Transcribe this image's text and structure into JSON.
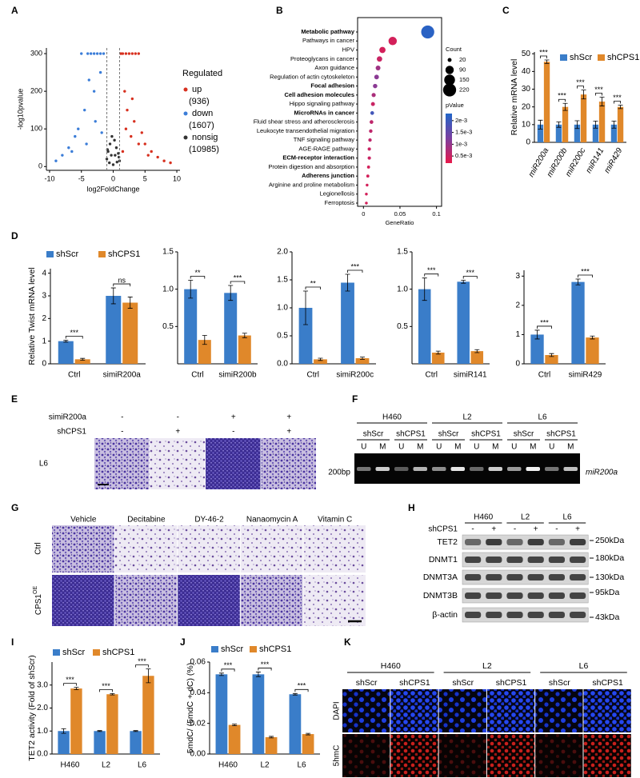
{
  "chart_data": [
    {
      "panel": "A",
      "type": "scatter",
      "ylabel": "-log10pvalue",
      "xlabel": "log2FoldChange",
      "xlim": [
        -10.5,
        10.5
      ],
      "ylim": [
        -10,
        315
      ],
      "xticks": [
        -10,
        -5,
        0,
        5,
        10
      ],
      "yticks": [
        0,
        100,
        200,
        300
      ],
      "vlines": [
        -1,
        1
      ],
      "legend_title": "Regulated",
      "series": [
        {
          "name": "up",
          "count_label": "(936)",
          "color": "#d7301f",
          "x": [
            1.2,
            1.5,
            2,
            2.5,
            3,
            3.5,
            4,
            5,
            6,
            7,
            8,
            9,
            2.2,
            3.3,
            4.5,
            1.8,
            2.8,
            5.5,
            1.5,
            2,
            3,
            4
          ],
          "y": [
            300,
            300,
            300,
            300,
            300,
            300,
            300,
            60,
            40,
            25,
            15,
            10,
            150,
            120,
            90,
            200,
            80,
            30,
            40,
            100,
            180,
            60
          ]
        },
        {
          "name": "down",
          "count_label": "(1607)",
          "color": "#3b7dd8",
          "x": [
            -1.5,
            -2,
            -2.5,
            -3,
            -3.5,
            -4,
            -5,
            -6,
            -7,
            -8,
            -9,
            -2,
            -3,
            -4.5,
            -5.5,
            -3.8,
            -2.8,
            -6.5,
            -1.8,
            -4.2
          ],
          "y": [
            300,
            300,
            300,
            300,
            300,
            300,
            300,
            80,
            50,
            30,
            15,
            250,
            200,
            150,
            100,
            230,
            120,
            40,
            90,
            60
          ]
        },
        {
          "name": "nonsig",
          "count_label": "(10985)",
          "color": "#333333",
          "x": [
            -1,
            -0.8,
            -0.5,
            -0.3,
            0,
            0.3,
            0.5,
            0.8,
            1,
            -0.6,
            0.6,
            -0.2,
            0.2,
            0.9,
            -0.9
          ],
          "y": [
            20,
            40,
            60,
            30,
            5,
            30,
            50,
            35,
            15,
            10,
            12,
            80,
            70,
            25,
            45
          ]
        }
      ]
    },
    {
      "panel": "B",
      "type": "dot",
      "xlabel": "GeneRatio",
      "categories": [
        "Metabolic pathway",
        "Pathways in cancer",
        "HPV",
        "Proteoglycans in cancer",
        "Axon guidance",
        "Regulation of actin cytoskeleton",
        "Focal adhesion",
        "Cell adhesion molecules",
        "Hippo signaling pathway",
        "MicroRNAs in cancer",
        "Fluid shear stress and atherosclerosis",
        "Leukocyte transendothelial migration",
        "TNF signaling pathway",
        "AGE-RAGE pathway",
        "ECM-receptor interaction",
        "Protein digestion and absorption",
        "Adherens junction",
        "Arginine and proline metabolism",
        "Legionellosis",
        "Ferroptosis"
      ],
      "values": [
        0.088,
        0.04,
        0.026,
        0.022,
        0.02,
        0.018,
        0.016,
        0.014,
        0.013,
        0.012,
        0.011,
        0.01,
        0.009,
        0.008,
        0.008,
        0.007,
        0.006,
        0.005,
        0.004,
        0.004
      ],
      "sizes": [
        220,
        90,
        50,
        38,
        30,
        28,
        25,
        22,
        20,
        18,
        18,
        16,
        15,
        14,
        14,
        12,
        12,
        10,
        10,
        10
      ],
      "pvalues": [
        0.0022,
        0.0004,
        0.0004,
        0.0005,
        0.0009,
        0.0011,
        0.0011,
        0.0008,
        0.0005,
        0.0019,
        0.0006,
        0.0006,
        0.0006,
        0.0005,
        0.0005,
        0.0004,
        0.0004,
        0.0004,
        0.0004,
        0.0004
      ],
      "bold": [
        0,
        6,
        7,
        9,
        14,
        16
      ],
      "xlim": [
        -0.008,
        0.107
      ],
      "xticks": [
        0,
        0.05,
        0.1
      ],
      "size_title": "Count",
      "size_ticks": [
        20,
        90,
        150,
        220
      ],
      "color_title": "pValue",
      "clim": [
        0.0002,
        0.0023
      ],
      "cticks": [
        {
          "value": 0.002,
          "label": "2e-3"
        },
        {
          "value": 0.0015,
          "label": "1.5e-3"
        },
        {
          "value": 0.001,
          "label": "1e-3"
        },
        {
          "value": 0.0005,
          "label": "0.5e-3"
        }
      ],
      "colors": [
        "#e8194a",
        "#7b3fa0",
        "#2166c8"
      ]
    },
    {
      "panel": "C",
      "type": "bar",
      "ylabel": "Relative mRNA level",
      "categories": [
        "miR200a",
        "miR200b",
        "miR200c",
        "miR141",
        "miR429"
      ],
      "ylim": [
        0,
        51
      ],
      "yticks": [
        0,
        10,
        20,
        30,
        40,
        50
      ],
      "series": [
        {
          "name": "shScr",
          "color": "#3a7dc9",
          "values": [
            10,
            10,
            10,
            10,
            10
          ],
          "errors": [
            2.5,
            1.5,
            2.2,
            2,
            2
          ]
        },
        {
          "name": "shCPS1",
          "color": "#e0882a",
          "values": [
            45.5,
            20,
            27,
            23,
            20
          ],
          "errors": [
            1,
            2,
            2.5,
            2.5,
            1
          ]
        }
      ],
      "significance": [
        "***",
        "***",
        "***",
        "***",
        "***"
      ]
    },
    {
      "panel": "D",
      "type": "bar",
      "ylabel": "Relative Twist mRNA level",
      "categories": [
        "Ctrl",
        "simiR200a"
      ],
      "ylim": [
        0,
        4.2
      ],
      "yticks": [
        0,
        1,
        2,
        3,
        4
      ],
      "series": [
        {
          "name": "shScr",
          "color": "#3a7dc9",
          "values": [
            1.0,
            3.0
          ],
          "errors": [
            0.04,
            0.35
          ]
        },
        {
          "name": "shCPS1",
          "color": "#e0882a",
          "values": [
            0.2,
            2.7
          ],
          "errors": [
            0.04,
            0.25
          ]
        }
      ],
      "significance": [
        "***",
        "ns"
      ]
    },
    {
      "type": "bar",
      "categories": [
        "Ctrl",
        "simiR200b"
      ],
      "ylim": [
        0,
        1.5
      ],
      "yticks": [
        0.5,
        {
          "value": 1,
          "label": "1.0"
        },
        1.5
      ],
      "series": [
        {
          "color": "#3a7dc9",
          "values": [
            1.0,
            0.95
          ],
          "errors": [
            0.12,
            0.1
          ]
        },
        {
          "color": "#e0882a",
          "values": [
            0.32,
            0.38
          ],
          "errors": [
            0.06,
            0.03
          ]
        }
      ],
      "significance": [
        "**",
        "***"
      ]
    },
    {
      "type": "bar",
      "categories": [
        "Ctrl",
        "simiR200c"
      ],
      "ylim": [
        0,
        2
      ],
      "yticks": [
        {
          "value": 0,
          "label": "0.0"
        },
        0.5,
        {
          "value": 1,
          "label": "1.0"
        },
        1.5,
        {
          "value": 2,
          "label": "2.0"
        }
      ],
      "series": [
        {
          "color": "#3a7dc9",
          "values": [
            1.0,
            1.45
          ],
          "errors": [
            0.3,
            0.15
          ]
        },
        {
          "color": "#e0882a",
          "values": [
            0.08,
            0.1
          ],
          "errors": [
            0.02,
            0.02
          ]
        }
      ],
      "significance": [
        "**",
        "***"
      ]
    },
    {
      "type": "bar",
      "categories": [
        "Ctrl",
        "simiR141"
      ],
      "ylim": [
        0,
        1.5
      ],
      "yticks": [
        0.5,
        {
          "value": 1,
          "label": "1.0"
        },
        1.5
      ],
      "series": [
        {
          "color": "#3a7dc9",
          "values": [
            1.0,
            1.1
          ],
          "errors": [
            0.15,
            0.02
          ]
        },
        {
          "color": "#e0882a",
          "values": [
            0.15,
            0.17
          ],
          "errors": [
            0.02,
            0.02
          ]
        }
      ],
      "significance": [
        "***",
        "***"
      ]
    },
    {
      "type": "bar",
      "categories": [
        "Ctrl",
        "simiR429"
      ],
      "ylim": [
        0,
        3.2
      ],
      "yticks": [
        0,
        1,
        2,
        3
      ],
      "series": [
        {
          "color": "#3a7dc9",
          "values": [
            1.0,
            2.8
          ],
          "errors": [
            0.15,
            0.1
          ]
        },
        {
          "color": "#e0882a",
          "values": [
            0.3,
            0.9
          ],
          "errors": [
            0.05,
            0.05
          ]
        }
      ],
      "significance": [
        "***",
        "***"
      ]
    },
    {
      "panel": "I",
      "type": "bar",
      "ylabel": "TET2 activity (Fold of shScr)",
      "categories": [
        "H460",
        "L2",
        "L6"
      ],
      "ylim": [
        0,
        4
      ],
      "yticks": [
        {
          "value": 0,
          "label": "0.0"
        },
        {
          "value": 1,
          "label": "1.0"
        },
        {
          "value": 2,
          "label": "2.0"
        },
        {
          "value": 3,
          "label": "3.0"
        }
      ],
      "series": [
        {
          "name": "shScr",
          "color": "#3a7dc9",
          "values": [
            1,
            1,
            1
          ],
          "errors": [
            0.1,
            0.02,
            0.02
          ]
        },
        {
          "name": "shCPS1",
          "color": "#e0882a",
          "values": [
            2.85,
            2.6,
            3.4
          ],
          "errors": [
            0.05,
            0.03,
            0.3
          ]
        }
      ],
      "significance": [
        "***",
        "***",
        "***"
      ]
    },
    {
      "panel": "J",
      "type": "bar",
      "ylabel": "5mdC/ (5mdC + dC) (%)",
      "categories": [
        "H460",
        "L2",
        "L6"
      ],
      "ylim": [
        0,
        0.06
      ],
      "yticks": [
        {
          "value": 0,
          "label": "0.00"
        },
        0.02,
        0.04,
        0.06
      ],
      "series": [
        {
          "name": "shScr",
          "color": "#3a7dc9",
          "values": [
            0.052,
            0.052,
            0.039
          ],
          "errors": [
            0.0008,
            0.0015,
            0.0005
          ]
        },
        {
          "name": "shCPS1",
          "color": "#e0882a",
          "values": [
            0.019,
            0.011,
            0.013
          ],
          "errors": [
            0.0005,
            0.0005,
            0.0005
          ]
        }
      ],
      "significance": [
        "***",
        "***",
        "***"
      ]
    }
  ],
  "E": {
    "panel": "E",
    "rows": [
      {
        "label": "simiR200a",
        "signs": [
          "-",
          "-",
          "+",
          "+"
        ]
      },
      {
        "label": "shCPS1",
        "signs": [
          "-",
          "+",
          "-",
          "+"
        ]
      }
    ],
    "image_row": "L6"
  },
  "F": {
    "panel": "F",
    "groups": [
      "H460",
      "L2",
      "L6"
    ],
    "subgroups": [
      "shScr",
      "shCPS1",
      "shScr",
      "shCPS1",
      "shScr",
      "shCPS1"
    ],
    "lanes": [
      "U",
      "M",
      "U",
      "M",
      "U",
      "M",
      "U",
      "M",
      "U",
      "M",
      "U",
      "M"
    ],
    "marker": "200bp",
    "target": "miR200a"
  },
  "G": {
    "panel": "G",
    "columns": [
      "Vehicle",
      "Decitabine",
      "DY-46-2",
      "Nanaomycin A",
      "Vitamin C"
    ],
    "rows": [
      {
        "label": "Ctrl"
      },
      {
        "label": "CPS1",
        "sup": "OE"
      }
    ]
  },
  "H": {
    "panel": "H",
    "groups": [
      "H460",
      "L2",
      "L6"
    ],
    "condition": "shCPS1",
    "signs": [
      "-",
      "+",
      "-",
      "+",
      "-",
      "+"
    ],
    "proteins": [
      "TET2",
      "DNMT1",
      "DNMT3A",
      "DNMT3B",
      "β-actin"
    ],
    "markers": [
      "250kDa",
      "180kDa",
      "130kDa",
      "95kDa",
      "43kDa"
    ]
  },
  "K": {
    "panel": "K",
    "groups": [
      "H460",
      "L2",
      "L6"
    ],
    "subgroups": [
      "shScr",
      "shCPS1",
      "shScr",
      "shCPS1",
      "shScr",
      "shCPS1"
    ],
    "channels": [
      "DAPI",
      "5hmC"
    ]
  }
}
